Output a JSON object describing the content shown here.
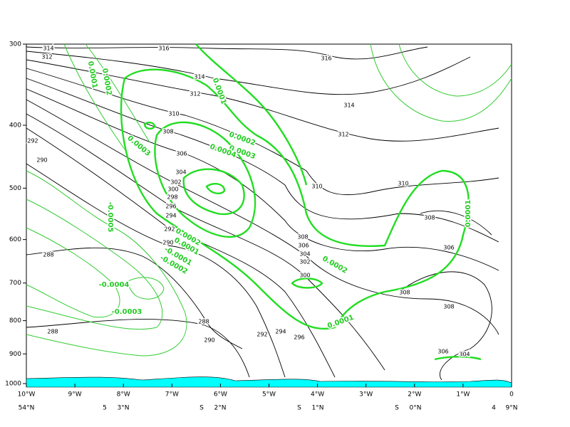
{
  "chart_data": {
    "type": "contour",
    "ylim": [
      1000,
      300
    ],
    "log_y": true,
    "yticks": [
      300,
      400,
      500,
      600,
      700,
      800,
      900,
      1000
    ],
    "xlim": [
      -10,
      0
    ],
    "xticks": [
      {
        "value": -10,
        "label": "10°W"
      },
      {
        "value": -9,
        "label": "9°W"
      },
      {
        "value": -8,
        "label": "8°W"
      },
      {
        "value": -7,
        "label": "7°W"
      },
      {
        "value": -6,
        "label": "6°W"
      },
      {
        "value": -5,
        "label": "5°W"
      },
      {
        "value": -4,
        "label": "4°W"
      },
      {
        "value": -3,
        "label": "3°W"
      },
      {
        "value": -2,
        "label": "2°W"
      },
      {
        "value": -1,
        "label": "1°W"
      },
      0
    ],
    "lat_labels": [
      "54°N",
      "5",
      "3°N",
      "S",
      "2°N",
      "S",
      "1°N",
      "S",
      "0°N",
      "4",
      "9°N"
    ],
    "black_labels": [
      316,
      316,
      314,
      312,
      314,
      314,
      312,
      312,
      310,
      310,
      310,
      308,
      306,
      304,
      302,
      300,
      298,
      296,
      294,
      292,
      290,
      290,
      292,
      288,
      288,
      288,
      290,
      292,
      294,
      296,
      308,
      306,
      308,
      308,
      306,
      304,
      308,
      306,
      304,
      302,
      300
    ],
    "green_labels": [
      0.0001,
      0.0002,
      0.0003,
      0.0002,
      0.0003,
      0.0004,
      0.0001,
      -0.0005,
      -0.0004,
      -0.0003,
      0.0002,
      0.0001,
      -0.0001,
      -0.0002,
      0.0002,
      0.0001,
      0.0001
    ]
  }
}
